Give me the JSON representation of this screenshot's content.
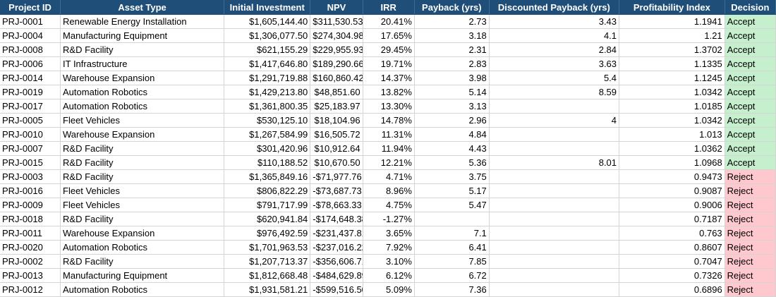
{
  "colors": {
    "header_bg": "#1f4e78",
    "header_text": "#ffffff",
    "accept_bg": "#c6efce",
    "reject_bg": "#ffc7ce",
    "gridline": "#d4d4d4"
  },
  "headers": [
    "Project ID",
    "Asset Type",
    "Initial Investment",
    "NPV",
    "IRR",
    "Payback (yrs)",
    "Discounted Payback (yrs)",
    "Profitability Index",
    "Decision"
  ],
  "rows": [
    [
      "PRJ-0001",
      "Renewable Energy Installation",
      "$1,605,144.40",
      "$311,530.53",
      "20.41%",
      "2.73",
      "3.43",
      "1.1941",
      "Accept"
    ],
    [
      "PRJ-0004",
      "Manufacturing Equipment",
      "$1,306,077.50",
      "$274,304.98",
      "17.65%",
      "3.18",
      "4.1",
      "1.21",
      "Accept"
    ],
    [
      "PRJ-0008",
      "R&D Facility",
      "$621,155.29",
      "$229,955.93",
      "29.45%",
      "2.31",
      "2.84",
      "1.3702",
      "Accept"
    ],
    [
      "PRJ-0006",
      "IT Infrastructure",
      "$1,417,646.80",
      "$189,290.66",
      "19.71%",
      "2.83",
      "3.63",
      "1.1335",
      "Accept"
    ],
    [
      "PRJ-0014",
      "Warehouse Expansion",
      "$1,291,719.88",
      "$160,860.42",
      "14.37%",
      "3.98",
      "5.4",
      "1.1245",
      "Accept"
    ],
    [
      "PRJ-0019",
      "Automation Robotics",
      "$1,429,213.80",
      "$48,851.60",
      "13.82%",
      "5.14",
      "8.59",
      "1.0342",
      "Accept"
    ],
    [
      "PRJ-0017",
      "Automation Robotics",
      "$1,361,800.35",
      "$25,183.97",
      "13.30%",
      "3.13",
      "",
      "1.0185",
      "Accept"
    ],
    [
      "PRJ-0005",
      "Fleet Vehicles",
      "$530,125.10",
      "$18,104.96",
      "14.78%",
      "2.96",
      "4",
      "1.0342",
      "Accept"
    ],
    [
      "PRJ-0010",
      "Warehouse Expansion",
      "$1,267,584.99",
      "$16,505.72",
      "11.31%",
      "4.84",
      "",
      "1.013",
      "Accept"
    ],
    [
      "PRJ-0007",
      "R&D Facility",
      "$301,420.96",
      "$10,912.64",
      "11.94%",
      "4.43",
      "",
      "1.0362",
      "Accept"
    ],
    [
      "PRJ-0015",
      "R&D Facility",
      "$110,188.52",
      "$10,670.50",
      "12.21%",
      "5.36",
      "8.01",
      "1.0968",
      "Accept"
    ],
    [
      "PRJ-0003",
      "R&D Facility",
      "$1,365,849.16",
      "-$71,977.76",
      "4.71%",
      "3.75",
      "",
      "0.9473",
      "Reject"
    ],
    [
      "PRJ-0016",
      "Fleet Vehicles",
      "$806,822.29",
      "-$73,687.73",
      "8.96%",
      "5.17",
      "",
      "0.9087",
      "Reject"
    ],
    [
      "PRJ-0009",
      "Fleet Vehicles",
      "$791,717.99",
      "-$78,663.33",
      "4.75%",
      "5.47",
      "",
      "0.9006",
      "Reject"
    ],
    [
      "PRJ-0018",
      "R&D Facility",
      "$620,941.84",
      "-$174,648.38",
      "-1.27%",
      "",
      "",
      "0.7187",
      "Reject"
    ],
    [
      "PRJ-0011",
      "Warehouse Expansion",
      "$976,492.59",
      "-$231,437.81",
      "3.65%",
      "7.1",
      "",
      "0.763",
      "Reject"
    ],
    [
      "PRJ-0020",
      "Automation Robotics",
      "$1,701,963.53",
      "-$237,016.22",
      "7.92%",
      "6.41",
      "",
      "0.8607",
      "Reject"
    ],
    [
      "PRJ-0002",
      "R&D Facility",
      "$1,207,713.37",
      "-$356,606.71",
      "3.10%",
      "7.85",
      "",
      "0.7047",
      "Reject"
    ],
    [
      "PRJ-0013",
      "Manufacturing Equipment",
      "$1,812,668.48",
      "-$484,629.89",
      "6.12%",
      "6.72",
      "",
      "0.7326",
      "Reject"
    ],
    [
      "PRJ-0012",
      "Automation Robotics",
      "$1,931,581.21",
      "-$599,516.50",
      "5.09%",
      "7.36",
      "",
      "0.6896",
      "Reject"
    ]
  ]
}
